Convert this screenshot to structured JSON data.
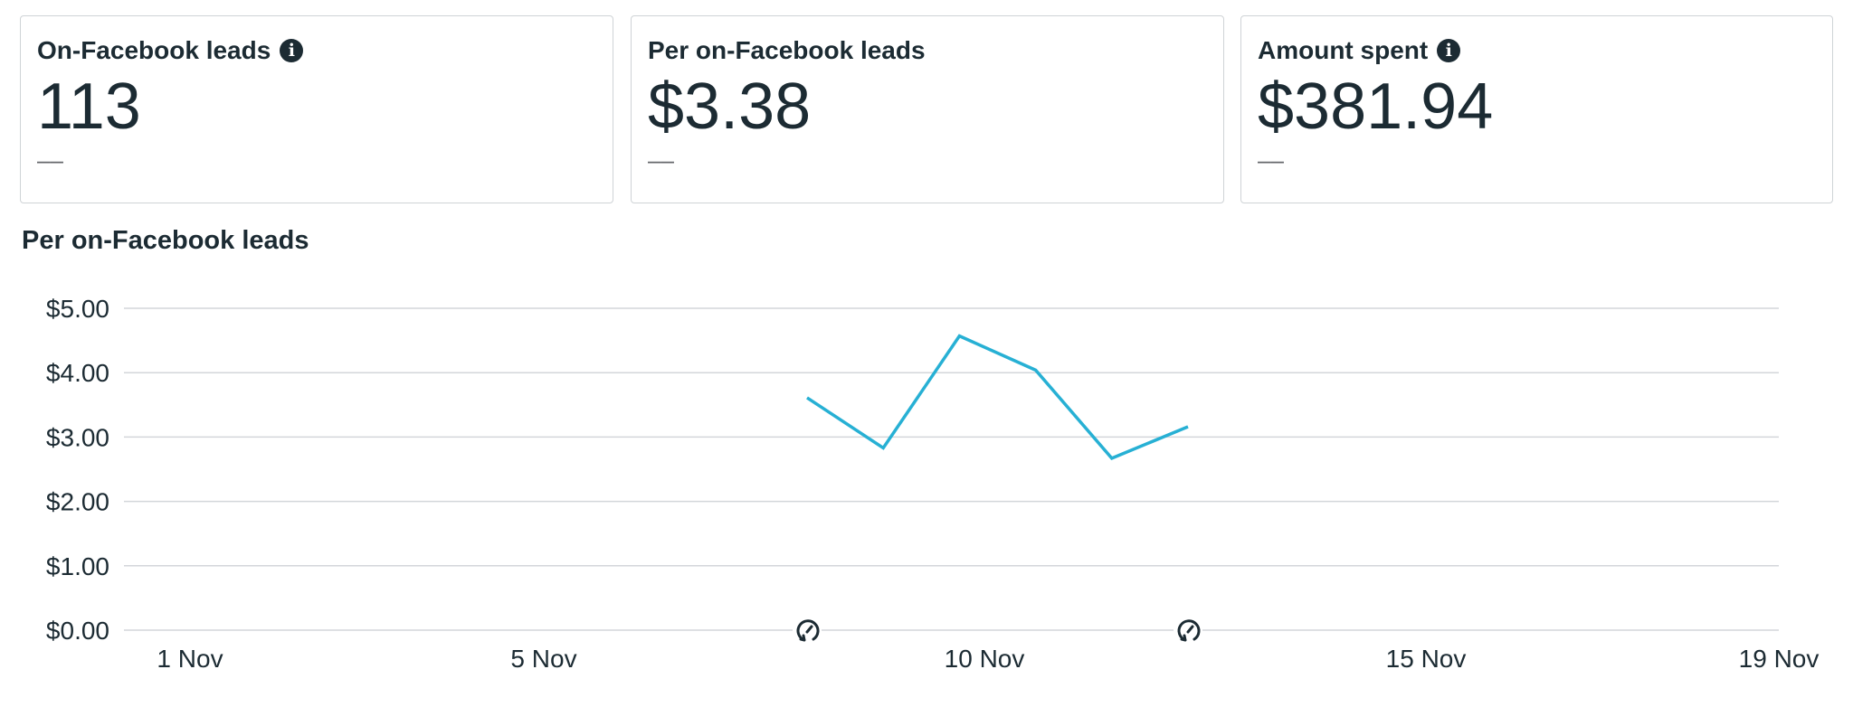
{
  "cards": [
    {
      "title": "On-Facebook leads",
      "value": "113",
      "delta": "––",
      "info": true
    },
    {
      "title": "Per on-Facebook leads",
      "value": "$3.38",
      "delta": "––",
      "info": false
    },
    {
      "title": "Amount spent",
      "value": "$381.94",
      "delta": "––",
      "info": true
    }
  ],
  "chart_data": {
    "type": "line",
    "title": "Per on-Facebook leads",
    "x_ticks": [
      "1 Nov",
      "5 Nov",
      "10 Nov",
      "15 Nov",
      "19 Nov"
    ],
    "y_ticks": [
      "$0.00",
      "$1.00",
      "$2.00",
      "$3.00",
      "$4.00",
      "$5.00"
    ],
    "ylim": [
      0,
      5
    ],
    "grid": true,
    "line_color": "#27b0d4",
    "series": [
      {
        "x": [
          "8 Nov",
          "9 Nov",
          "10 Nov",
          "11 Nov",
          "12 Nov",
          "13 Nov"
        ],
        "values": [
          3.61,
          2.83,
          4.57,
          4.04,
          2.67,
          3.16
        ]
      }
    ],
    "markers": [
      {
        "x": "8 Nov",
        "icon": "learning-phase-icon"
      },
      {
        "x": "13 Nov",
        "icon": "learning-phase-icon"
      }
    ]
  }
}
